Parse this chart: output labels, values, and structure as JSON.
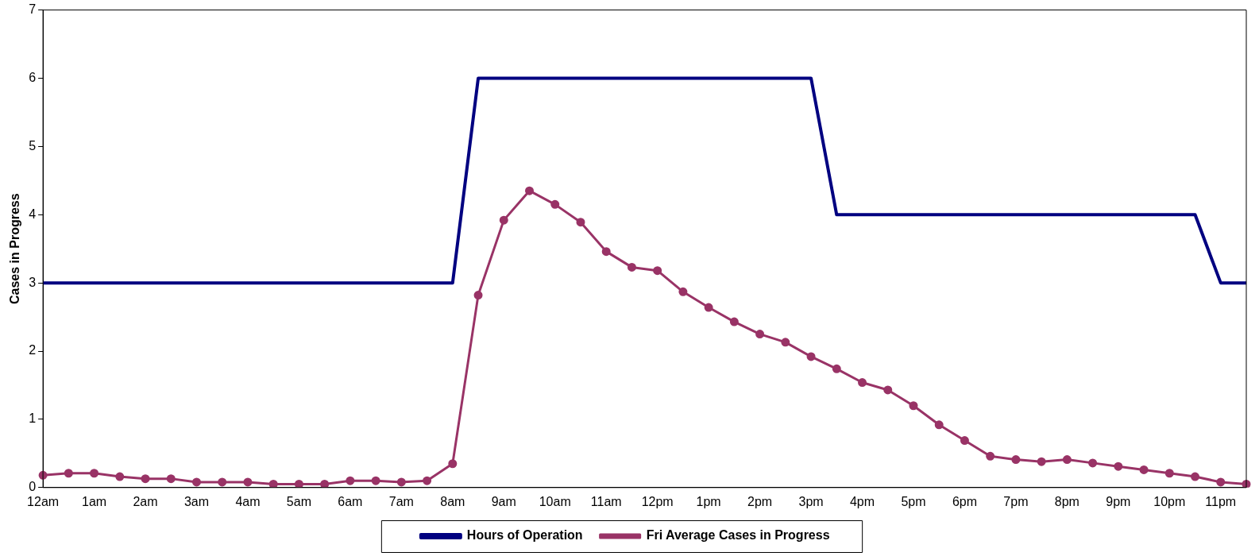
{
  "chart_data": {
    "type": "line",
    "ylabel": "Cases in Progress",
    "categories": [
      "12am",
      null,
      "1am",
      null,
      "2am",
      null,
      "3am",
      null,
      "4am",
      null,
      "5am",
      null,
      "6am",
      null,
      "7am",
      null,
      "8am",
      null,
      "9am",
      null,
      "10am",
      null,
      "11am",
      null,
      "12pm",
      null,
      "1pm",
      null,
      "2pm",
      null,
      "3pm",
      null,
      "4pm",
      null,
      "5pm",
      null,
      "6pm",
      null,
      "7pm",
      null,
      "8pm",
      null,
      "9pm",
      null,
      "10pm",
      null,
      "11pm",
      null
    ],
    "series": [
      {
        "name": "Hours of Operation",
        "color": "#000080",
        "marker": "none",
        "values": [
          3,
          3,
          3,
          3,
          3,
          3,
          3,
          3,
          3,
          3,
          3,
          3,
          3,
          3,
          3,
          3,
          3,
          6,
          6,
          6,
          6,
          6,
          6,
          6,
          6,
          6,
          6,
          6,
          6,
          6,
          6,
          4,
          4,
          4,
          4,
          4,
          4,
          4,
          4,
          4,
          4,
          4,
          4,
          4,
          4,
          4,
          3,
          3
        ]
      },
      {
        "name": "Fri Average Cases in Progress",
        "color": "#993366",
        "marker": "circle",
        "values": [
          0.18,
          0.21,
          0.21,
          0.16,
          0.13,
          0.13,
          0.08,
          0.08,
          0.08,
          0.05,
          0.05,
          0.05,
          0.1,
          0.1,
          0.08,
          0.1,
          0.35,
          2.82,
          3.92,
          4.35,
          4.15,
          3.89,
          3.46,
          3.23,
          3.18,
          2.87,
          2.64,
          2.43,
          2.25,
          2.13,
          1.92,
          1.74,
          1.54,
          1.43,
          1.2,
          0.92,
          0.69,
          0.46,
          0.41,
          0.38,
          0.41,
          0.36,
          0.31,
          0.26,
          0.21,
          0.16,
          0.08,
          0.05
        ]
      }
    ],
    "ylim": [
      0,
      7
    ],
    "yticks": [
      0,
      1,
      2,
      3,
      4,
      5,
      6,
      7
    ],
    "grid": false,
    "legend": "bottom"
  }
}
